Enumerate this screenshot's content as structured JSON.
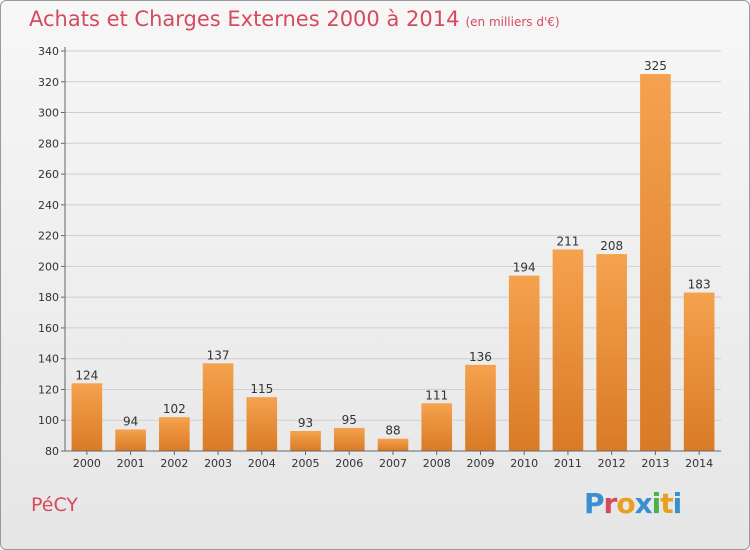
{
  "header": {
    "title": "Achats et Charges Externes 2000 à 2014",
    "subtitle": "(en milliers d'€)"
  },
  "footer": {
    "commune": "PéCY",
    "logo_text": "Proxiti",
    "logo_colors": [
      "#3a8fd0",
      "#d64a5e",
      "#e8a020",
      "#3a8fd0",
      "#4db04a",
      "#e8a020",
      "#3a8fd0"
    ]
  },
  "colors": {
    "bar_light": "#f5a24e",
    "bar_dark": "#d97a26",
    "grid": "#cfcfcf",
    "axis": "#666666",
    "text": "#333333",
    "accent": "#d64a5e"
  },
  "chart_data": {
    "type": "bar",
    "title": "Achats et Charges Externes 2000 à 2014",
    "subtitle": "(en milliers d'€)",
    "categories": [
      "2000",
      "2001",
      "2002",
      "2003",
      "2004",
      "2005",
      "2006",
      "2007",
      "2008",
      "2009",
      "2010",
      "2011",
      "2012",
      "2013",
      "2014"
    ],
    "values": [
      124,
      94,
      102,
      137,
      115,
      93,
      95,
      88,
      111,
      136,
      194,
      211,
      208,
      325,
      183
    ],
    "ylim": [
      80,
      340
    ],
    "yticks": [
      80,
      100,
      120,
      140,
      160,
      180,
      200,
      220,
      240,
      260,
      280,
      300,
      320,
      340
    ],
    "grid": true,
    "data_labels": true
  }
}
